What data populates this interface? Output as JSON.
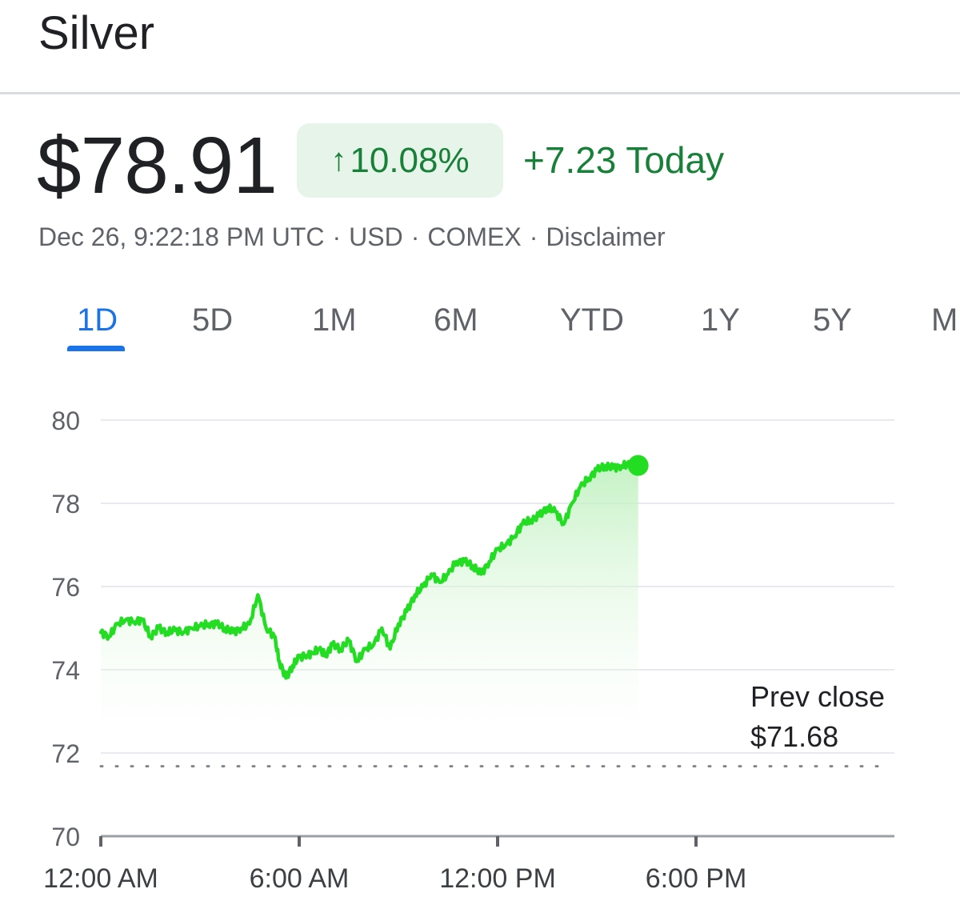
{
  "header": {
    "title": "Silver"
  },
  "quote": {
    "price": "$78.91",
    "percent_change": "10.08%",
    "up_arrow": "↑",
    "change_today": "+7.23 Today",
    "timestamp": "Dec 26, 9:22:18 PM UTC",
    "currency": "USD",
    "exchange": "COMEX",
    "disclaimer": "Disclaimer",
    "separator": "·"
  },
  "tabs": [
    {
      "label": "1D",
      "active": true
    },
    {
      "label": "5D",
      "active": false
    },
    {
      "label": "1M",
      "active": false
    },
    {
      "label": "6M",
      "active": false
    },
    {
      "label": "YTD",
      "active": false
    },
    {
      "label": "1Y",
      "active": false
    },
    {
      "label": "5Y",
      "active": false
    },
    {
      "label": "M",
      "active": false
    }
  ],
  "colors": {
    "line": "#22dd22",
    "fill_top": "#b9efb9",
    "up_text": "#188038",
    "badge_bg": "#e6f4ea",
    "active_tab": "#1a73e8"
  },
  "prev_close": {
    "label": "Prev close",
    "value": "$71.68"
  },
  "chart_data": {
    "type": "area",
    "title": "",
    "xlabel": "",
    "ylabel": "",
    "ylim": [
      70,
      80
    ],
    "yticks": [
      70,
      72,
      74,
      76,
      78,
      80
    ],
    "xlim": [
      0,
      24
    ],
    "xticks": [
      {
        "value": 0,
        "label": "12:00 AM"
      },
      {
        "value": 6,
        "label": "6:00 AM"
      },
      {
        "value": 12,
        "label": "12:00 PM"
      },
      {
        "value": 18,
        "label": "6:00 PM"
      }
    ],
    "reference_line": {
      "name": "Prev close",
      "value": 71.68
    },
    "grid": true,
    "series": [
      {
        "x": [
          0,
          0.25,
          0.5,
          0.75,
          1.0,
          1.25,
          1.5,
          1.75,
          2.0,
          2.25,
          2.5,
          2.75,
          3.0,
          3.25,
          3.5,
          3.75,
          4.0,
          4.25,
          4.5,
          4.75,
          5.0,
          5.25,
          5.4,
          5.6,
          5.8,
          6.0,
          6.25,
          6.4,
          6.6,
          6.8,
          7.0,
          7.25,
          7.5,
          7.75,
          8.0,
          8.25,
          8.5,
          8.75,
          9.0,
          9.25,
          9.5,
          9.75,
          10.0,
          10.25,
          10.5,
          10.75,
          11.0,
          11.25,
          11.5,
          11.75,
          12.0,
          12.25,
          12.5,
          12.75,
          13.0,
          13.25,
          13.5,
          13.75,
          14.0,
          14.25,
          14.5,
          14.75,
          15.0,
          15.25,
          15.5,
          15.75,
          16.0,
          16.25
        ],
        "y": [
          74.9,
          74.8,
          75.1,
          75.2,
          75.15,
          75.2,
          74.8,
          75.0,
          74.9,
          74.95,
          74.9,
          75.0,
          75.05,
          75.1,
          75.1,
          75.0,
          74.9,
          75.0,
          75.1,
          75.8,
          75.0,
          74.8,
          74.2,
          73.8,
          74.1,
          74.3,
          74.35,
          74.4,
          74.5,
          74.35,
          74.6,
          74.5,
          74.7,
          74.2,
          74.5,
          74.6,
          75.0,
          74.5,
          75.1,
          75.4,
          75.8,
          76.0,
          76.3,
          76.1,
          76.3,
          76.6,
          76.6,
          76.5,
          76.3,
          76.6,
          76.9,
          77.0,
          77.2,
          77.5,
          77.6,
          77.7,
          77.9,
          77.8,
          77.5,
          78.0,
          78.4,
          78.6,
          78.8,
          78.9,
          78.85,
          78.9,
          78.95,
          78.91
        ]
      }
    ]
  }
}
